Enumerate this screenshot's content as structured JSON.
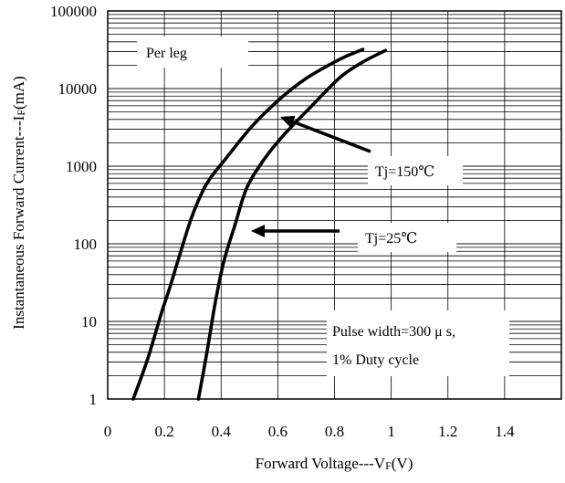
{
  "chart_data": {
    "type": "line",
    "xlabel": "Forward Voltage---V",
    "xlabel_sub": "F",
    "xlabel_unit": "(V)",
    "ylabel": "Instantaneous Forward Current---I",
    "ylabel_sub": "F",
    "ylabel_unit": "(mA)",
    "xlim": [
      0,
      1.6
    ],
    "ylim": [
      1,
      100000
    ],
    "yscale": "log",
    "grid": true,
    "xticks": [
      0,
      0.2,
      0.4,
      0.6,
      0.8,
      1.0,
      1.2,
      1.4
    ],
    "xtick_labels": [
      "0",
      "0.2",
      "0.4",
      "0.6",
      "0.8",
      "1",
      "1.2",
      "1.4"
    ],
    "yticks": [
      1,
      10,
      100,
      1000,
      10000,
      100000
    ],
    "ytick_labels": [
      "1",
      "10",
      "100",
      "1000",
      "10000",
      "100000"
    ],
    "series": [
      {
        "name": "Tj=150℃",
        "x": [
          0.09,
          0.14,
          0.19,
          0.22,
          0.26,
          0.3,
          0.35,
          0.42,
          0.51,
          0.61,
          0.7,
          0.79,
          0.84,
          0.9
        ],
        "y": [
          1,
          3.2,
          13,
          28,
          85,
          240,
          600,
          1300,
          3300,
          7500,
          13500,
          21000,
          26000,
          32000
        ]
      },
      {
        "name": "Tj=25℃",
        "x": [
          0.32,
          0.35,
          0.38,
          0.41,
          0.45,
          0.49,
          0.55,
          0.62,
          0.72,
          0.82,
          0.9,
          0.98
        ],
        "y": [
          1,
          4,
          18,
          60,
          180,
          520,
          1200,
          2500,
          6000,
          14000,
          22000,
          31000
        ]
      }
    ],
    "annotations": {
      "per_leg": "Per leg",
      "tj150": "Tj=150℃",
      "tj25": "Tj=25℃",
      "pulse_line1": "Pulse width=300 μ s,",
      "pulse_line2": "1% Duty cycle"
    }
  }
}
